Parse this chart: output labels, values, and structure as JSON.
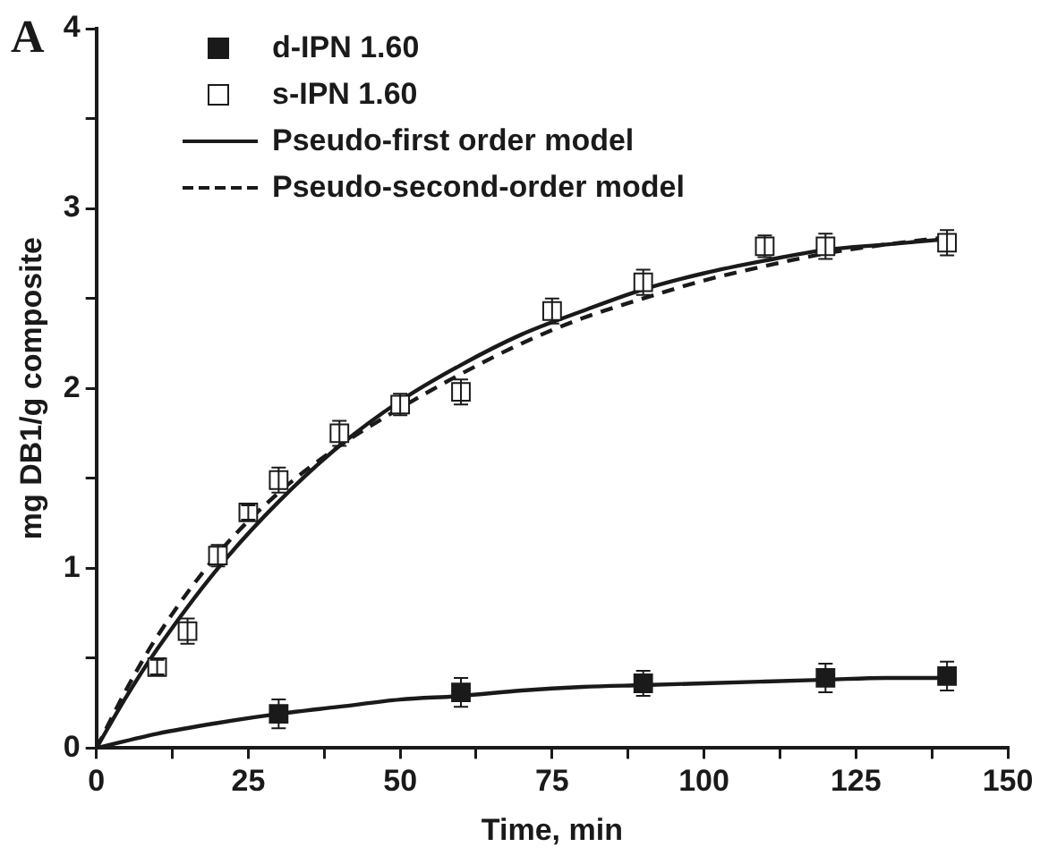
{
  "chart_data": {
    "type": "scatter",
    "xlabel": "Time, min",
    "ylabel": "mg DB1/g composite",
    "annotations": [
      "A"
    ],
    "xlim": [
      0,
      150
    ],
    "xticks": [
      0,
      {
        "value": 12.5,
        "label": null
      },
      25,
      {
        "value": 37.5,
        "label": null
      },
      50,
      {
        "value": 62.5,
        "label": null
      },
      75,
      {
        "value": 87.5,
        "label": null
      },
      100,
      {
        "value": 112.5,
        "label": null
      },
      125,
      {
        "value": 137.5,
        "label": null
      },
      150
    ],
    "ylim": [
      0,
      4
    ],
    "yticks": [
      0,
      {
        "value": 0.5,
        "label": null
      },
      1,
      {
        "value": 1.5,
        "label": null
      },
      2,
      {
        "value": 2.5,
        "label": null
      },
      3,
      {
        "value": 3.5,
        "label": null
      },
      4
    ],
    "grid": false,
    "legend": "top left",
    "marker": "square",
    "series": [
      {
        "name": "d-IPN 1.60",
        "color": "#1a1a1a",
        "x": [
          30,
          60,
          90,
          120,
          140
        ],
        "values": [
          0.19,
          0.31,
          0.36,
          0.39,
          0.4
        ],
        "errors": [
          0.08,
          0.08,
          0.07,
          0.08,
          0.08
        ]
      },
      {
        "name": "s-IPN 1.60",
        "color": "#ffffff",
        "x": [
          10,
          15,
          20,
          25,
          30,
          40,
          50,
          60,
          75,
          90,
          110,
          120,
          140
        ],
        "values": [
          0.45,
          0.65,
          1.07,
          1.31,
          1.49,
          1.75,
          1.91,
          1.98,
          2.43,
          2.59,
          2.79,
          2.79,
          2.81
        ],
        "errors": [
          0.04,
          0.07,
          0.06,
          0.04,
          0.07,
          0.07,
          0.06,
          0.07,
          0.07,
          0.07,
          0.06,
          0.07,
          0.07
        ]
      },
      {
        "name": "Pseudo-first order model",
        "type": "line",
        "color": "#1a1a1a",
        "line_style": "solid",
        "marker": "none",
        "x": [
          0,
          5,
          10,
          20,
          30,
          40,
          50,
          60,
          70,
          80,
          90,
          100,
          110,
          120,
          130,
          140
        ],
        "values": [
          0,
          0.29,
          0.55,
          1.0,
          1.37,
          1.68,
          1.93,
          2.13,
          2.3,
          2.43,
          2.55,
          2.64,
          2.71,
          2.77,
          2.8,
          2.83
        ]
      },
      {
        "name": "Pseudo-second-order model",
        "type": "line",
        "color": "#1a1a1a",
        "line_style": "dashed",
        "marker": "none",
        "x": [
          0,
          5,
          10,
          20,
          30,
          40,
          50,
          60,
          70,
          80,
          90,
          100,
          110,
          120,
          130,
          140
        ],
        "values": [
          0,
          0.33,
          0.62,
          1.08,
          1.42,
          1.68,
          1.89,
          2.08,
          2.25,
          2.39,
          2.5,
          2.6,
          2.68,
          2.75,
          2.8,
          2.84
        ]
      },
      {
        "type": "line",
        "color": "#1a1a1a",
        "line_style": "solid",
        "marker": "none",
        "x": [
          0,
          10,
          20,
          30,
          40,
          50,
          60,
          70,
          80,
          90,
          100,
          110,
          120,
          130,
          140
        ],
        "values": [
          0,
          0.08,
          0.14,
          0.19,
          0.23,
          0.27,
          0.29,
          0.32,
          0.34,
          0.35,
          0.36,
          0.37,
          0.38,
          0.39,
          0.39
        ]
      }
    ]
  }
}
